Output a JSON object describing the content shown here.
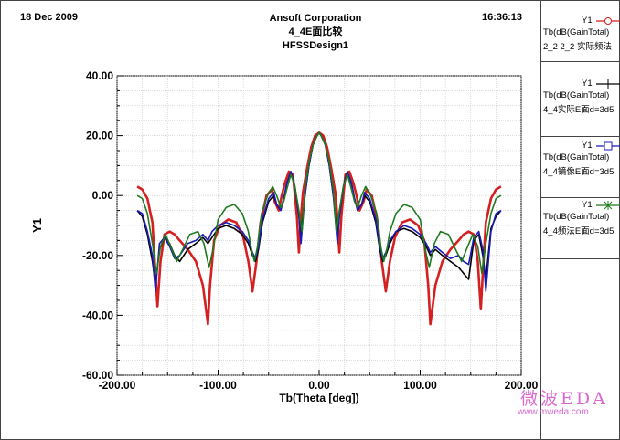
{
  "header": {
    "date": "18 Dec 2009",
    "company": "Ansoft Corporation",
    "title": "4_4E面比较",
    "design": "HFSSDesign1",
    "time": "16:36:13"
  },
  "legend": [
    {
      "y": "Y1",
      "trace": "Tb(dB(GainTotal)",
      "name": "2_2 2_2 实际频法",
      "color": "#d42020",
      "marker": "circle-icon"
    },
    {
      "y": "Y1",
      "trace": "Tb(dB(GainTotal)",
      "name": "4_4实际E面d=3d5",
      "color": "#000000",
      "marker": "plus-icon"
    },
    {
      "y": "Y1",
      "trace": "Tb(dB(GainTotal)",
      "name": "4_4镜像E面d=3d5",
      "color": "#1a1ab8",
      "marker": "square-icon"
    },
    {
      "y": "Y1",
      "trace": "Tb(dB(GainTotal)",
      "name": "4_4频法E面d=3d5",
      "color": "#1f7a1f",
      "marker": "star-icon"
    }
  ],
  "watermark": {
    "text": "微波EDA",
    "url": "www.mweda.com"
  },
  "chart_data": {
    "type": "line",
    "xlabel": "Tb(Theta [deg])",
    "ylabel": "Y1",
    "xlim": [
      -200,
      200
    ],
    "ylim": [
      -60,
      40
    ],
    "xticks": [
      "-200.00",
      "-100.00",
      "0.00",
      "100.00",
      "200.00"
    ],
    "yticks": [
      "40.00",
      "20.00",
      "0.00",
      "-20.00",
      "-40.00",
      "-60.00"
    ],
    "grid": true,
    "series": [
      {
        "name": "2_2 2_2 实际频法",
        "color": "#d42020",
        "x": [
          -180,
          -175,
          -170,
          -165,
          -162,
          -160,
          -157,
          -153,
          -148,
          -143,
          -138,
          -130,
          -122,
          -115,
          -110,
          -108,
          -104,
          -98,
          -90,
          -82,
          -75,
          -70,
          -66,
          -64,
          -62,
          -58,
          -52,
          -47,
          -44,
          -40,
          -37,
          -34,
          -30,
          -26,
          -22,
          -20,
          -18,
          -16,
          -12,
          -8,
          -4,
          0,
          4,
          8,
          12,
          16,
          18,
          20,
          22,
          26,
          30,
          34,
          37,
          40,
          44,
          47,
          52,
          58,
          62,
          64,
          66,
          70,
          75,
          82,
          90,
          98,
          104,
          108,
          110,
          115,
          122,
          130,
          138,
          143,
          148,
          153,
          157,
          160,
          162,
          165,
          170,
          175,
          180
        ],
        "y": [
          3,
          2,
          -1,
          -9,
          -26,
          -37,
          -22,
          -13,
          -12,
          -13,
          -15,
          -18,
          -22,
          -30,
          -43,
          -30,
          -15,
          -10,
          -8,
          -9,
          -14,
          -22,
          -32,
          -27,
          -22,
          -9,
          0,
          2,
          -2,
          -5,
          0,
          4,
          8,
          7,
          -7,
          -19,
          -7,
          1,
          9,
          16,
          20,
          21,
          20,
          16,
          9,
          1,
          -7,
          -19,
          -7,
          7,
          8,
          4,
          0,
          -5,
          -2,
          2,
          0,
          -9,
          -22,
          -27,
          -32,
          -22,
          -14,
          -9,
          -8,
          -10,
          -15,
          -30,
          -43,
          -30,
          -22,
          -18,
          -15,
          -13,
          -12,
          -13,
          -22,
          -38,
          -26,
          -9,
          -1,
          2,
          3
        ]
      },
      {
        "name": "4_4实际E面d=3d5",
        "color": "#000000",
        "x": [
          -180,
          -175,
          -170,
          -165,
          -162,
          -158,
          -153,
          -148,
          -143,
          -138,
          -130,
          -122,
          -115,
          -110,
          -106,
          -100,
          -92,
          -84,
          -76,
          -70,
          -66,
          -63,
          -60,
          -56,
          -50,
          -45,
          -42,
          -38,
          -35,
          -32,
          -28,
          -24,
          -20,
          -18,
          -14,
          -10,
          -6,
          -2,
          0,
          2,
          6,
          10,
          14,
          18,
          20,
          24,
          28,
          32,
          35,
          38,
          42,
          45,
          50,
          56,
          60,
          63,
          66,
          70,
          76,
          84,
          92,
          100,
          106,
          110,
          115,
          122,
          130,
          138,
          143,
          148,
          153,
          158,
          162,
          165,
          170,
          175,
          180
        ],
        "y": [
          -5,
          -7,
          -13,
          -22,
          -30,
          -18,
          -14,
          -16,
          -20,
          -22,
          -18,
          -16,
          -14,
          -16,
          -14,
          -11,
          -10,
          -11,
          -13,
          -16,
          -20,
          -22,
          -18,
          -9,
          -2,
          0,
          -3,
          -5,
          -1,
          4,
          8,
          3,
          -7,
          -13,
          0,
          10,
          17,
          20,
          21,
          20,
          17,
          10,
          0,
          -13,
          -7,
          3,
          8,
          4,
          -1,
          -5,
          -3,
          0,
          -2,
          -9,
          -18,
          -22,
          -20,
          -16,
          -12,
          -11,
          -12,
          -14,
          -17,
          -20,
          -18,
          -20,
          -22,
          -24,
          -26,
          -28,
          -15,
          -13,
          -20,
          -28,
          -11,
          -7,
          -5
        ]
      },
      {
        "name": "4_4镜像E面d=3d5",
        "color": "#1a1ab8",
        "x": [
          -180,
          -175,
          -170,
          -165,
          -162,
          -158,
          -153,
          -148,
          -143,
          -138,
          -130,
          -122,
          -115,
          -110,
          -106,
          -100,
          -92,
          -84,
          -76,
          -70,
          -66,
          -63,
          -60,
          -56,
          -50,
          -45,
          -42,
          -38,
          -35,
          -32,
          -28,
          -24,
          -20,
          -18,
          -14,
          -10,
          -6,
          -2,
          0,
          2,
          6,
          10,
          14,
          18,
          20,
          24,
          28,
          32,
          35,
          38,
          42,
          45,
          50,
          56,
          60,
          63,
          66,
          70,
          76,
          84,
          92,
          100,
          106,
          110,
          115,
          122,
          130,
          138,
          143,
          148,
          153,
          158,
          162,
          165,
          170,
          175,
          180
        ],
        "y": [
          -5,
          -6,
          -12,
          -20,
          -32,
          -16,
          -14,
          -17,
          -21,
          -20,
          -16,
          -15,
          -13,
          -15,
          -12,
          -10,
          -9,
          -10,
          -12,
          -15,
          -19,
          -21,
          -17,
          -8,
          -1,
          1,
          -3,
          -5,
          -1,
          4,
          8,
          3,
          -7,
          -16,
          0,
          10,
          17,
          20,
          21,
          20,
          17,
          10,
          0,
          -16,
          -7,
          3,
          8,
          4,
          -1,
          -5,
          -3,
          1,
          -1,
          -8,
          -17,
          -21,
          -19,
          -15,
          -12,
          -10,
          -11,
          -13,
          -16,
          -19,
          -17,
          -19,
          -21,
          -20,
          -22,
          -23,
          -14,
          -12,
          -18,
          -32,
          -12,
          -6,
          -5
        ]
      },
      {
        "name": "4_4频法E面d=3d5",
        "color": "#1f7a1f",
        "x": [
          -180,
          -175,
          -170,
          -165,
          -161,
          -157,
          -152,
          -147,
          -141,
          -135,
          -128,
          -120,
          -114,
          -109,
          -105,
          -100,
          -92,
          -84,
          -76,
          -70,
          -67,
          -64,
          -61,
          -57,
          -51,
          -46,
          -42,
          -38,
          -35,
          -32,
          -28,
          -24,
          -20,
          -17,
          -14,
          -10,
          -6,
          -2,
          0,
          2,
          6,
          10,
          14,
          17,
          20,
          24,
          28,
          32,
          35,
          38,
          42,
          46,
          51,
          57,
          61,
          64,
          67,
          70,
          76,
          84,
          92,
          100,
          105,
          109,
          114,
          120,
          128,
          135,
          141,
          147,
          152,
          157,
          161,
          165,
          170,
          175,
          180
        ],
        "y": [
          0,
          -1,
          -6,
          -16,
          -26,
          -17,
          -13,
          -17,
          -22,
          -18,
          -13,
          -12,
          -16,
          -24,
          -18,
          -8,
          -4,
          -3,
          -6,
          -12,
          -18,
          -22,
          -17,
          -6,
          0,
          3,
          0,
          -4,
          -2,
          2,
          7,
          3,
          -5,
          -12,
          2,
          11,
          17,
          20,
          21,
          20,
          17,
          11,
          2,
          -12,
          -5,
          3,
          7,
          2,
          -2,
          -4,
          0,
          3,
          0,
          -6,
          -17,
          -22,
          -18,
          -12,
          -6,
          -3,
          -4,
          -8,
          -18,
          -24,
          -16,
          -12,
          -13,
          -18,
          -22,
          -17,
          -13,
          -17,
          -26,
          -16,
          -6,
          -1,
          0
        ]
      }
    ]
  }
}
